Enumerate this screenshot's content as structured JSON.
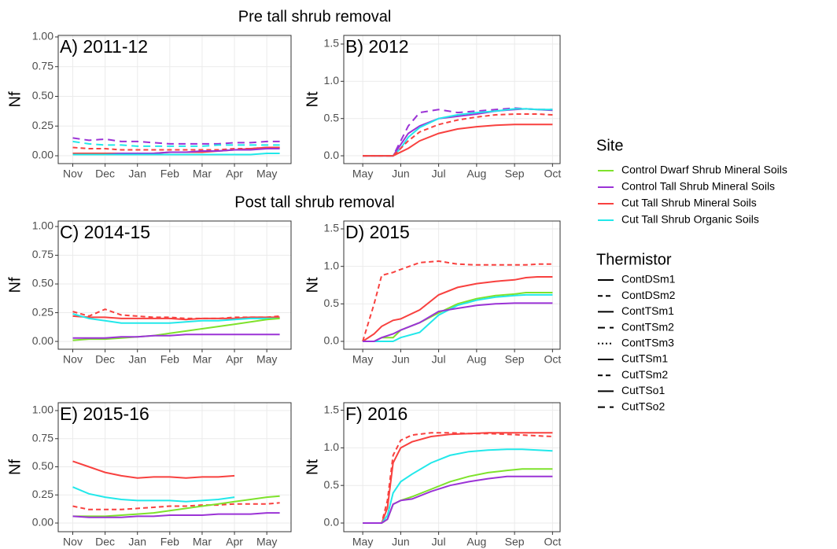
{
  "section_titles": [
    "Pre tall shrub removal",
    "Post tall shrub removal"
  ],
  "legend": {
    "site_title": "Site",
    "sites": [
      {
        "name": "Control Dwarf Shrub Mineral Soils",
        "color": "#7ee22c"
      },
      {
        "name": "Control Tall Shrub Mineral Soils",
        "color": "#9b33d6"
      },
      {
        "name": "Cut Tall Shrub Mineral Soils",
        "color": "#f8413f"
      },
      {
        "name": "Cut Tall Shrub Organic Soils",
        "color": "#22e8ea"
      }
    ],
    "thermistor_title": "Thermistor",
    "thermistors": [
      {
        "name": "ContDSm1",
        "dash": "solid"
      },
      {
        "name": "ContDSm2",
        "dash": "dashed"
      },
      {
        "name": "ContTSm1",
        "dash": "solid"
      },
      {
        "name": "ContTSm2",
        "dash": "longdash"
      },
      {
        "name": "ContTSm3",
        "dash": "dotted"
      },
      {
        "name": "CutTSm1",
        "dash": "solid"
      },
      {
        "name": "CutTSm2",
        "dash": "dashed"
      },
      {
        "name": "CutTSo1",
        "dash": "solid"
      },
      {
        "name": "CutTSo2",
        "dash": "longdash"
      }
    ]
  },
  "chart_data": [
    {
      "type": "line",
      "title": "A) 2011-12",
      "y_label": "Nf",
      "x": [
        0,
        0.5,
        1,
        1.5,
        2,
        2.5,
        3,
        3.5,
        4,
        4.5,
        5,
        5.5,
        6,
        6.4
      ],
      "xlim": [
        -0.45,
        6.75
      ],
      "ylim": [
        -0.066,
        1.013
      ],
      "grid": true,
      "xticks": [
        {
          "value": 0,
          "label": "Nov"
        },
        {
          "value": 1,
          "label": "Dec"
        },
        {
          "value": 2,
          "label": "Jan"
        },
        {
          "value": 3,
          "label": "Feb"
        },
        {
          "value": 4,
          "label": "Mar"
        },
        {
          "value": 5,
          "label": "Apr"
        },
        {
          "value": 6,
          "label": "May"
        }
      ],
      "yticks": [
        {
          "value": 0,
          "label": "0.00"
        },
        0.25,
        {
          "value": 0.5,
          "label": "0.50"
        },
        0.75,
        {
          "value": 1,
          "label": "1.00"
        }
      ],
      "series": [
        {
          "name": "ContTSm2",
          "color": "#9b33d6",
          "values": [
            0.15,
            0.13,
            0.14,
            0.12,
            0.12,
            0.11,
            0.1,
            0.1,
            0.1,
            0.1,
            0.11,
            0.11,
            0.12,
            0.12
          ]
        },
        {
          "name": "CutTSo2",
          "color": "#22e8ea",
          "values": [
            0.12,
            0.1,
            0.09,
            0.09,
            0.08,
            0.08,
            0.08,
            0.08,
            0.08,
            0.09,
            0.09,
            0.09,
            0.09,
            0.09
          ]
        },
        {
          "name": "CutTSm2",
          "color": "#f8413f",
          "values": [
            0.07,
            0.06,
            0.06,
            0.05,
            0.05,
            0.05,
            0.05,
            0.05,
            0.05,
            0.05,
            0.06,
            0.06,
            0.07,
            0.07
          ]
        },
        {
          "name": "CutTSm1",
          "color": "#f8413f",
          "values": [
            0.02,
            0.02,
            0.02,
            0.02,
            0.02,
            0.02,
            0.03,
            0.03,
            0.03,
            0.04,
            0.05,
            0.06,
            0.07,
            0.07
          ]
        },
        {
          "name": "ContTSm1",
          "color": "#9b33d6",
          "values": [
            0.01,
            0.01,
            0.01,
            0.02,
            0.02,
            0.02,
            0.03,
            0.03,
            0.04,
            0.04,
            0.05,
            0.05,
            0.06,
            0.06
          ]
        },
        {
          "name": "CutTSo1",
          "color": "#22e8ea",
          "values": [
            0.01,
            0.01,
            0.01,
            0.01,
            0.01,
            0.01,
            0.01,
            0.01,
            0.01,
            0.01,
            0.01,
            0.01,
            0.02,
            0.02
          ]
        }
      ]
    },
    {
      "type": "line",
      "title": "B) 2012",
      "y_label": "Nt",
      "x": [
        0,
        0.5,
        0.8,
        1.0,
        1.2,
        1.5,
        2.0,
        2.5,
        3.0,
        3.5,
        4.0,
        4.3,
        4.6,
        5.0
      ],
      "xlim": [
        -0.5,
        5.2
      ],
      "ylim": [
        -0.105,
        1.616
      ],
      "grid": true,
      "xticks": [
        {
          "value": 0,
          "label": "May"
        },
        {
          "value": 1,
          "label": "Jun"
        },
        {
          "value": 2,
          "label": "Jul"
        },
        {
          "value": 3,
          "label": "Aug"
        },
        {
          "value": 4,
          "label": "Sep"
        },
        {
          "value": 5,
          "label": "Oct"
        }
      ],
      "yticks": [
        {
          "value": 0,
          "label": "0.0"
        },
        0.5,
        {
          "value": 1,
          "label": "1.0"
        },
        1.5
      ],
      "series": [
        {
          "name": "ContTSm2",
          "color": "#9b33d6",
          "values": [
            0,
            0,
            0,
            0.2,
            0.4,
            0.58,
            0.62,
            0.58,
            0.6,
            0.62,
            0.64,
            0.63,
            0.62,
            0.62
          ]
        },
        {
          "name": "ContTSm1",
          "color": "#9b33d6",
          "values": [
            0,
            0,
            0,
            0.15,
            0.3,
            0.4,
            0.5,
            0.53,
            0.56,
            0.6,
            0.62,
            0.63,
            0.62,
            0.61
          ]
        },
        {
          "name": "CutTSo1",
          "color": "#22e8ea",
          "values": [
            0,
            0,
            0,
            0.1,
            0.25,
            0.38,
            0.5,
            0.55,
            0.58,
            0.6,
            0.63,
            0.63,
            0.62,
            0.62
          ]
        },
        {
          "name": "CutTSm2",
          "color": "#f8413f",
          "values": [
            0,
            0,
            0,
            0.1,
            0.2,
            0.32,
            0.42,
            0.48,
            0.52,
            0.55,
            0.56,
            0.56,
            0.56,
            0.55
          ]
        },
        {
          "name": "CutTSm1",
          "color": "#f8413f",
          "values": [
            0,
            0,
            0,
            0.05,
            0.1,
            0.2,
            0.3,
            0.36,
            0.39,
            0.41,
            0.42,
            0.42,
            0.42,
            0.42
          ]
        }
      ]
    },
    {
      "type": "line",
      "title": "C) 2014-15",
      "y_label": "Nf",
      "x": [
        0,
        0.5,
        1,
        1.5,
        2,
        2.5,
        3,
        3.5,
        4,
        4.5,
        5,
        5.5,
        6,
        6.4
      ],
      "xlim": [
        -0.45,
        6.75
      ],
      "ylim": [
        -0.068,
        1.048
      ],
      "grid": true,
      "xticks": [
        {
          "value": 0,
          "label": "Nov"
        },
        {
          "value": 1,
          "label": "Dec"
        },
        {
          "value": 2,
          "label": "Jan"
        },
        {
          "value": 3,
          "label": "Feb"
        },
        {
          "value": 4,
          "label": "Mar"
        },
        {
          "value": 5,
          "label": "Apr"
        },
        {
          "value": 6,
          "label": "May"
        }
      ],
      "yticks": [
        {
          "value": 0,
          "label": "0.00"
        },
        0.25,
        {
          "value": 0.5,
          "label": "0.50"
        },
        0.75,
        {
          "value": 1,
          "label": "1.00"
        }
      ],
      "series": [
        {
          "name": "CutTSm2",
          "color": "#f8413f",
          "values": [
            0.26,
            0.22,
            0.28,
            0.23,
            0.22,
            0.21,
            0.21,
            0.2,
            0.2,
            0.2,
            0.21,
            0.21,
            0.21,
            0.22
          ]
        },
        {
          "name": "CutTSm1",
          "color": "#f8413f",
          "values": [
            0.22,
            0.21,
            0.21,
            0.2,
            0.2,
            0.2,
            0.2,
            0.19,
            0.2,
            0.2,
            0.2,
            0.21,
            0.21,
            0.21
          ]
        },
        {
          "name": "CutTSo1",
          "color": "#22e8ea",
          "values": [
            0.24,
            0.2,
            0.18,
            0.16,
            0.16,
            0.16,
            0.16,
            0.17,
            0.18,
            0.18,
            0.19,
            0.2,
            0.2,
            0.2
          ]
        },
        {
          "name": "ContDSm1",
          "color": "#7ee22c",
          "values": [
            0.01,
            0.02,
            0.02,
            0.03,
            0.04,
            0.05,
            0.07,
            0.09,
            0.11,
            0.13,
            0.15,
            0.17,
            0.19,
            0.2
          ]
        },
        {
          "name": "ContTSm1",
          "color": "#9b33d6",
          "values": [
            0.03,
            0.03,
            0.03,
            0.04,
            0.04,
            0.05,
            0.05,
            0.06,
            0.06,
            0.06,
            0.06,
            0.06,
            0.06,
            0.06
          ]
        }
      ]
    },
    {
      "type": "line",
      "title": "D) 2015",
      "y_label": "Nt",
      "x": [
        0,
        0.3,
        0.5,
        0.8,
        1.0,
        1.5,
        2.0,
        2.5,
        3.0,
        3.5,
        4.0,
        4.3,
        4.6,
        5.0
      ],
      "xlim": [
        -0.5,
        5.2
      ],
      "ylim": [
        -0.105,
        1.605
      ],
      "grid": true,
      "xticks": [
        {
          "value": 0,
          "label": "May"
        },
        {
          "value": 1,
          "label": "Jun"
        },
        {
          "value": 2,
          "label": "Jul"
        },
        {
          "value": 3,
          "label": "Aug"
        },
        {
          "value": 4,
          "label": "Sep"
        },
        {
          "value": 5,
          "label": "Oct"
        }
      ],
      "yticks": [
        {
          "value": 0,
          "label": "0.0"
        },
        0.5,
        {
          "value": 1,
          "label": "1.0"
        },
        1.5
      ],
      "series": [
        {
          "name": "CutTSm2",
          "color": "#f8413f",
          "values": [
            0,
            0.5,
            0.88,
            0.92,
            0.96,
            1.05,
            1.07,
            1.03,
            1.02,
            1.02,
            1.02,
            1.02,
            1.03,
            1.03
          ]
        },
        {
          "name": "CutTSm1",
          "color": "#f8413f",
          "values": [
            0,
            0.1,
            0.2,
            0.28,
            0.3,
            0.42,
            0.62,
            0.72,
            0.77,
            0.8,
            0.82,
            0.85,
            0.86,
            0.86
          ]
        },
        {
          "name": "ContDSm1",
          "color": "#7ee22c",
          "values": [
            0,
            0,
            0.05,
            0.05,
            0.15,
            0.25,
            0.38,
            0.5,
            0.57,
            0.61,
            0.63,
            0.65,
            0.65,
            0.65
          ]
        },
        {
          "name": "CutTSo1",
          "color": "#22e8ea",
          "values": [
            0,
            0,
            0,
            0,
            0.05,
            0.12,
            0.35,
            0.48,
            0.55,
            0.59,
            0.61,
            0.62,
            0.62,
            0.62
          ]
        },
        {
          "name": "ContTSm1",
          "color": "#9b33d6",
          "values": [
            0,
            0,
            0.05,
            0.1,
            0.15,
            0.25,
            0.4,
            0.44,
            0.48,
            0.5,
            0.51,
            0.51,
            0.51,
            0.51
          ]
        }
      ]
    },
    {
      "type": "line",
      "title": "E) 2015-16",
      "y_label": "Nf",
      "x": [
        0,
        0.5,
        1,
        1.5,
        2,
        2.5,
        3,
        3.5,
        4,
        4.5,
        5,
        5.5,
        6,
        6.4
      ],
      "xlim": [
        -0.45,
        6.75
      ],
      "ylim": [
        -0.077,
        1.07
      ],
      "grid": true,
      "xticks": [
        {
          "value": 0,
          "label": "Nov"
        },
        {
          "value": 1,
          "label": "Dec"
        },
        {
          "value": 2,
          "label": "Jan"
        },
        {
          "value": 3,
          "label": "Feb"
        },
        {
          "value": 4,
          "label": "Mar"
        },
        {
          "value": 5,
          "label": "Apr"
        },
        {
          "value": 6,
          "label": "May"
        }
      ],
      "yticks": [
        {
          "value": 0,
          "label": "0.00"
        },
        0.25,
        {
          "value": 0.5,
          "label": "0.50"
        },
        0.75,
        {
          "value": 1,
          "label": "1.00"
        }
      ],
      "series": [
        {
          "name": "CutTSm1",
          "color": "#f8413f",
          "values": [
            0.55,
            0.5,
            0.45,
            0.42,
            0.4,
            0.41,
            0.41,
            0.4,
            0.41,
            0.41,
            0.42,
            null,
            null,
            null
          ]
        },
        {
          "name": "CutTSo1",
          "color": "#22e8ea",
          "values": [
            0.32,
            0.26,
            0.23,
            0.21,
            0.2,
            0.2,
            0.2,
            0.19,
            0.2,
            0.21,
            0.23,
            null,
            null,
            null
          ]
        },
        {
          "name": "CutTSm2",
          "color": "#f8413f",
          "values": [
            0.15,
            0.12,
            0.12,
            0.12,
            0.13,
            0.14,
            0.15,
            0.15,
            0.16,
            0.16,
            0.17,
            0.17,
            0.17,
            0.18
          ]
        },
        {
          "name": "ContDSm1",
          "color": "#7ee22c",
          "values": [
            0.06,
            0.06,
            0.06,
            0.07,
            0.08,
            0.09,
            0.11,
            0.13,
            0.15,
            0.17,
            0.19,
            0.21,
            0.23,
            0.24
          ]
        },
        {
          "name": "ContTSm1",
          "color": "#9b33d6",
          "values": [
            0.06,
            0.05,
            0.05,
            0.05,
            0.06,
            0.06,
            0.07,
            0.07,
            0.07,
            0.08,
            0.08,
            0.08,
            0.09,
            0.09
          ]
        }
      ]
    },
    {
      "type": "line",
      "title": "F) 2016",
      "y_label": "Nt",
      "x": [
        0,
        0.5,
        0.65,
        0.8,
        1.0,
        1.3,
        1.8,
        2.3,
        2.8,
        3.3,
        3.8,
        4.2,
        4.6,
        5.0
      ],
      "xlim": [
        -0.5,
        5.2
      ],
      "ylim": [
        -0.115,
        1.6
      ],
      "grid": true,
      "xticks": [
        {
          "value": 0,
          "label": "May"
        },
        {
          "value": 1,
          "label": "Jun"
        },
        {
          "value": 2,
          "label": "Jul"
        },
        {
          "value": 3,
          "label": "Aug"
        },
        {
          "value": 4,
          "label": "Sep"
        },
        {
          "value": 5,
          "label": "Oct"
        }
      ],
      "yticks": [
        {
          "value": 0,
          "label": "0.0"
        },
        0.5,
        {
          "value": 1,
          "label": "1.0"
        },
        1.5
      ],
      "series": [
        {
          "name": "CutTSm2",
          "color": "#f8413f",
          "values": [
            0,
            0,
            0.3,
            0.9,
            1.1,
            1.17,
            1.2,
            1.2,
            1.19,
            1.19,
            1.18,
            1.17,
            1.16,
            1.15
          ]
        },
        {
          "name": "CutTSm1",
          "color": "#f8413f",
          "values": [
            0,
            0,
            0.2,
            0.8,
            1.0,
            1.08,
            1.15,
            1.18,
            1.19,
            1.2,
            1.2,
            1.2,
            1.2,
            1.2
          ]
        },
        {
          "name": "CutTSo1",
          "color": "#22e8ea",
          "values": [
            0,
            0,
            0.1,
            0.4,
            0.55,
            0.65,
            0.8,
            0.9,
            0.95,
            0.97,
            0.98,
            0.98,
            0.97,
            0.96
          ]
        },
        {
          "name": "ContDSm1",
          "color": "#7ee22c",
          "values": [
            0,
            0,
            0.05,
            0.25,
            0.3,
            0.35,
            0.45,
            0.55,
            0.62,
            0.67,
            0.7,
            0.72,
            0.72,
            0.72
          ]
        },
        {
          "name": "ContTSm1",
          "color": "#9b33d6",
          "values": [
            0,
            0,
            0.05,
            0.25,
            0.3,
            0.32,
            0.42,
            0.5,
            0.55,
            0.59,
            0.62,
            0.62,
            0.62,
            0.62
          ]
        }
      ]
    }
  ]
}
